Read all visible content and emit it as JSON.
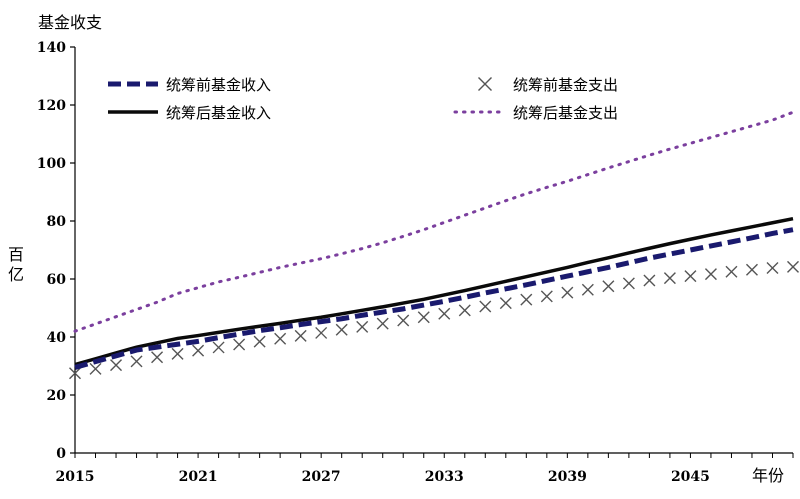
{
  "chart_data": {
    "type": "line",
    "title": "",
    "ylabel_top": "基金收支",
    "ylabel_unit": "百亿",
    "xlabel": "年份",
    "ylim": [
      0,
      140
    ],
    "yticks": [
      0,
      20,
      40,
      60,
      80,
      100,
      120,
      140
    ],
    "xlim": [
      2015,
      2050
    ],
    "xticks": [
      2015,
      2021,
      2027,
      2033,
      2039,
      2045
    ],
    "legend_position": "top",
    "x": [
      2015,
      2016,
      2017,
      2018,
      2019,
      2020,
      2021,
      2022,
      2023,
      2024,
      2025,
      2026,
      2027,
      2028,
      2029,
      2030,
      2031,
      2032,
      2033,
      2034,
      2035,
      2036,
      2037,
      2038,
      2039,
      2040,
      2041,
      2042,
      2043,
      2044,
      2045,
      2046,
      2047,
      2048,
      2049,
      2050
    ],
    "series": [
      {
        "name": "统筹前基金收入",
        "style": "dashed",
        "color": "#1a1a6e",
        "values": [
          29.5,
          31.5,
          33.5,
          35.5,
          36.5,
          37.5,
          38.5,
          39.8,
          41,
          42.2,
          43.2,
          44.3,
          45.3,
          46.3,
          47.5,
          48.6,
          49.7,
          51,
          52.3,
          53.7,
          55.2,
          56.6,
          58,
          59.5,
          61,
          62.5,
          64,
          65.6,
          67.2,
          68.6,
          70,
          71.4,
          72.8,
          74.2,
          75.7,
          77
        ]
      },
      {
        "name": "统筹前基金支出",
        "style": "markers-x",
        "color": "#555555",
        "values": [
          27.5,
          29,
          30.3,
          31.6,
          33,
          34.2,
          35.3,
          36.4,
          37.4,
          38.4,
          39.4,
          40.4,
          41.4,
          42.5,
          43.5,
          44.6,
          45.7,
          46.8,
          48,
          49.2,
          50.5,
          51.7,
          52.9,
          54,
          55.3,
          56.3,
          57.5,
          58.5,
          59.5,
          60.3,
          61,
          61.7,
          62.5,
          63.2,
          63.8,
          64.2
        ]
      },
      {
        "name": "统筹后基金收入",
        "style": "solid",
        "color": "#0a0a0a",
        "values": [
          30.5,
          32.5,
          34.5,
          36.5,
          38,
          39.5,
          40.5,
          41.6,
          42.7,
          43.7,
          44.7,
          45.8,
          46.8,
          48,
          49.2,
          50.4,
          51.7,
          53,
          54.5,
          56,
          57.6,
          59.2,
          60.8,
          62.4,
          64,
          65.7,
          67.3,
          69,
          70.6,
          72.2,
          73.7,
          75.2,
          76.6,
          78,
          79.4,
          80.8
        ]
      },
      {
        "name": "统筹后基金支出",
        "style": "dotted",
        "color": "#7b3f9e",
        "values": [
          42,
          44.5,
          47,
          49.5,
          52,
          55,
          57,
          59,
          60.6,
          62.3,
          64,
          65.5,
          67,
          68.7,
          70.5,
          72.5,
          74.7,
          77,
          79.5,
          82,
          84.5,
          87,
          89.4,
          91.6,
          93.7,
          96,
          98.3,
          100.5,
          102.7,
          104.8,
          106.8,
          108.8,
          110.8,
          112.8,
          114.8,
          117.5
        ]
      }
    ]
  }
}
